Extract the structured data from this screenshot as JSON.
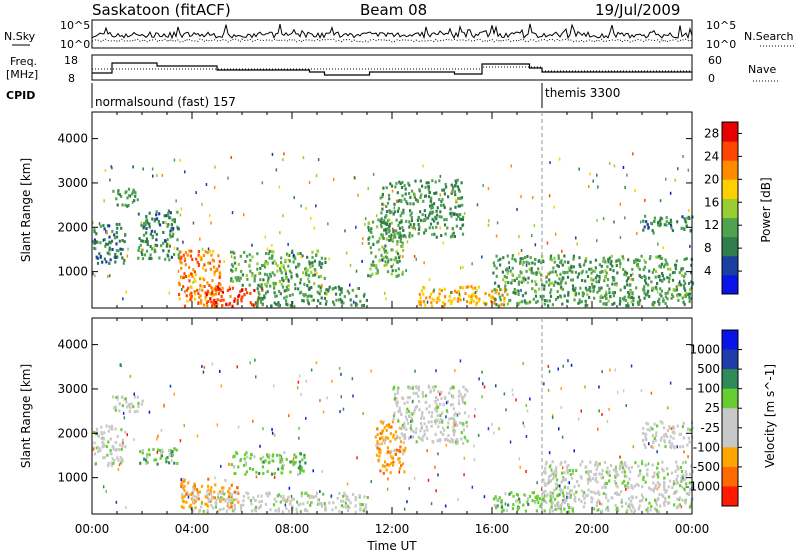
{
  "header": {
    "station": "Saskatoon (fitACF)",
    "beam": "Beam 08",
    "date": "19/Jul/2009"
  },
  "panels": {
    "noise": {
      "left_label": "N.Sky",
      "right_label": "N.Search",
      "left_ticks": [
        "10^5",
        "10^0"
      ],
      "right_ticks": [
        "10^5",
        "10^0"
      ]
    },
    "freq": {
      "left_label_1": "Freq.",
      "left_label_2": "[MHz]",
      "left_ticks": [
        "18",
        "8"
      ],
      "right_label": "Nave",
      "right_ticks": [
        "60",
        "0"
      ]
    },
    "cpid": {
      "label": "CPID",
      "programs": [
        {
          "name": "normalsound (fast) 157",
          "start_hour": 0
        },
        {
          "name": "themis 3300",
          "start_hour": 18
        }
      ]
    }
  },
  "colors": {
    "power_scale": [
      "#0a14e6",
      "#1a3fa0",
      "#2f7d4a",
      "#4fa34f",
      "#9acd32",
      "#ffd000",
      "#ff8c00",
      "#ff4500",
      "#e60000"
    ],
    "velocity_scale": [
      "#0a14e6",
      "#1e3caa",
      "#2e8b57",
      "#66cd32",
      "#c8c8c8",
      "#c8c8c8",
      "#ffa500",
      "#ff6a00",
      "#ff1a00"
    ],
    "text": "#000000"
  },
  "chart_data": [
    {
      "type": "heatmap",
      "name": "power",
      "ylabel": "Slant Range [km]",
      "x_range_hours": [
        0,
        24
      ],
      "ylim_km": [
        180,
        4600
      ],
      "yticks": [
        1000,
        2000,
        3000,
        4000
      ],
      "colorbar": {
        "label": "Power [dB]",
        "ticks": [
          4,
          8,
          12,
          16,
          20,
          24,
          28
        ],
        "range": [
          0,
          30
        ]
      },
      "echo_regions": [
        {
          "hours": [
            0,
            1.3
          ],
          "range_km": [
            1200,
            2100
          ],
          "value": 8
        },
        {
          "hours": [
            0.8,
            1.8
          ],
          "range_km": [
            2500,
            2900
          ],
          "value": 10
        },
        {
          "hours": [
            1.8,
            3.5
          ],
          "range_km": [
            1300,
            2400
          ],
          "value": 9
        },
        {
          "hours": [
            3.4,
            5.2
          ],
          "range_km": [
            250,
            1500
          ],
          "value": 22
        },
        {
          "hours": [
            4.5,
            6.8
          ],
          "range_km": [
            250,
            700
          ],
          "value": 26
        },
        {
          "hours": [
            5.5,
            9.3
          ],
          "range_km": [
            700,
            1500
          ],
          "value": 12
        },
        {
          "hours": [
            6.5,
            11.0
          ],
          "range_km": [
            250,
            700
          ],
          "value": 10
        },
        {
          "hours": [
            11.0,
            12.4
          ],
          "range_km": [
            900,
            2200
          ],
          "value": 12
        },
        {
          "hours": [
            11.5,
            14.8
          ],
          "range_km": [
            1800,
            3100
          ],
          "value": 10
        },
        {
          "hours": [
            13.0,
            16.5
          ],
          "range_km": [
            250,
            700
          ],
          "value": 20
        },
        {
          "hours": [
            16.0,
            24.0
          ],
          "range_km": [
            250,
            1400
          ],
          "value": 11
        },
        {
          "hours": [
            22.0,
            24.0
          ],
          "range_km": [
            1900,
            2300
          ],
          "value": 9
        }
      ]
    },
    {
      "type": "heatmap",
      "name": "velocity",
      "ylabel": "Slant Range [km]",
      "xlabel": "Time UT",
      "x_range_hours": [
        0,
        24
      ],
      "xtick_labels": [
        "00:00",
        "04:00",
        "08:00",
        "12:00",
        "16:00",
        "20:00",
        "00:00"
      ],
      "ylim_km": [
        180,
        4600
      ],
      "yticks": [
        1000,
        2000,
        3000,
        4000
      ],
      "colorbar": {
        "label": "Velocity [m s^-1]",
        "tick_labels": [
          "1000",
          "500",
          "100",
          "25",
          "-25",
          "-100",
          "-500",
          "-1000"
        ]
      },
      "echo_regions": [
        {
          "hours": [
            0,
            1.3
          ],
          "range_km": [
            1300,
            2200
          ],
          "category": 4
        },
        {
          "hours": [
            0.8,
            2.0
          ],
          "range_km": [
            2500,
            2900
          ],
          "category": 4
        },
        {
          "hours": [
            1.8,
            3.5
          ],
          "range_km": [
            1300,
            1700
          ],
          "category": 3
        },
        {
          "hours": [
            3.5,
            6.0
          ],
          "range_km": [
            350,
            1000
          ],
          "category": 6
        },
        {
          "hours": [
            4.0,
            11.0
          ],
          "range_km": [
            250,
            700
          ],
          "category": 4
        },
        {
          "hours": [
            5.5,
            8.5
          ],
          "range_km": [
            1100,
            1600
          ],
          "category": 3
        },
        {
          "hours": [
            11.3,
            12.5
          ],
          "range_km": [
            1100,
            2300
          ],
          "category": 6
        },
        {
          "hours": [
            12.0,
            15.0
          ],
          "range_km": [
            1800,
            3100
          ],
          "category": 4
        },
        {
          "hours": [
            16.0,
            19.0
          ],
          "range_km": [
            250,
            700
          ],
          "category": 3
        },
        {
          "hours": [
            18.0,
            24.0
          ],
          "range_km": [
            250,
            1400
          ],
          "category": 4
        },
        {
          "hours": [
            22.0,
            24.0
          ],
          "range_km": [
            1700,
            2300
          ],
          "category": 4
        }
      ]
    }
  ]
}
